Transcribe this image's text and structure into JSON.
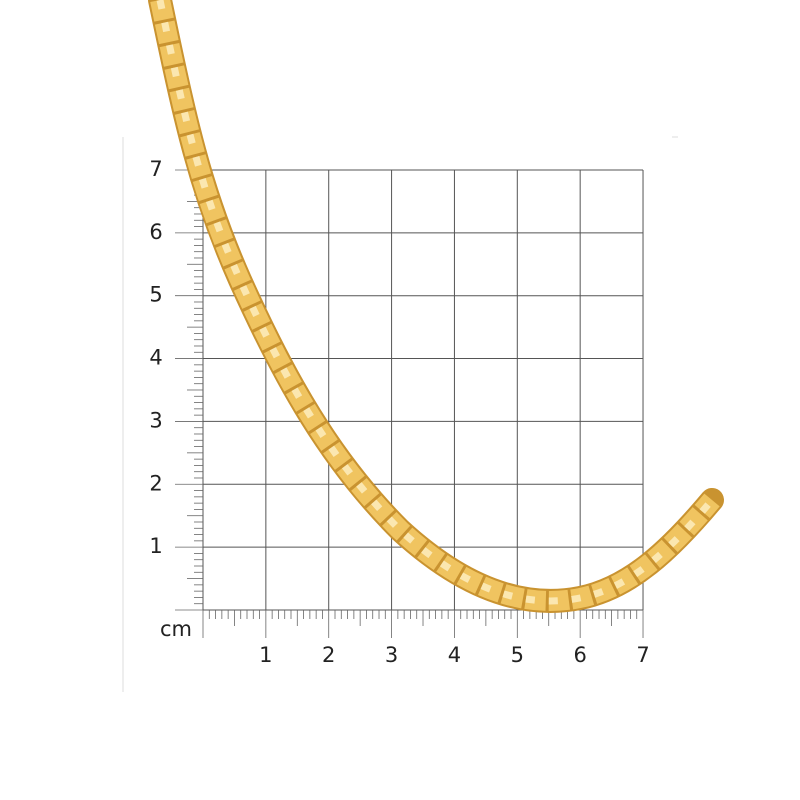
{
  "grid": {
    "unit": "cm",
    "x_labels": [
      "1",
      "2",
      "3",
      "4",
      "5",
      "6",
      "7"
    ],
    "y_labels": [
      "1",
      "2",
      "3",
      "4",
      "5",
      "6",
      "7"
    ]
  }
}
